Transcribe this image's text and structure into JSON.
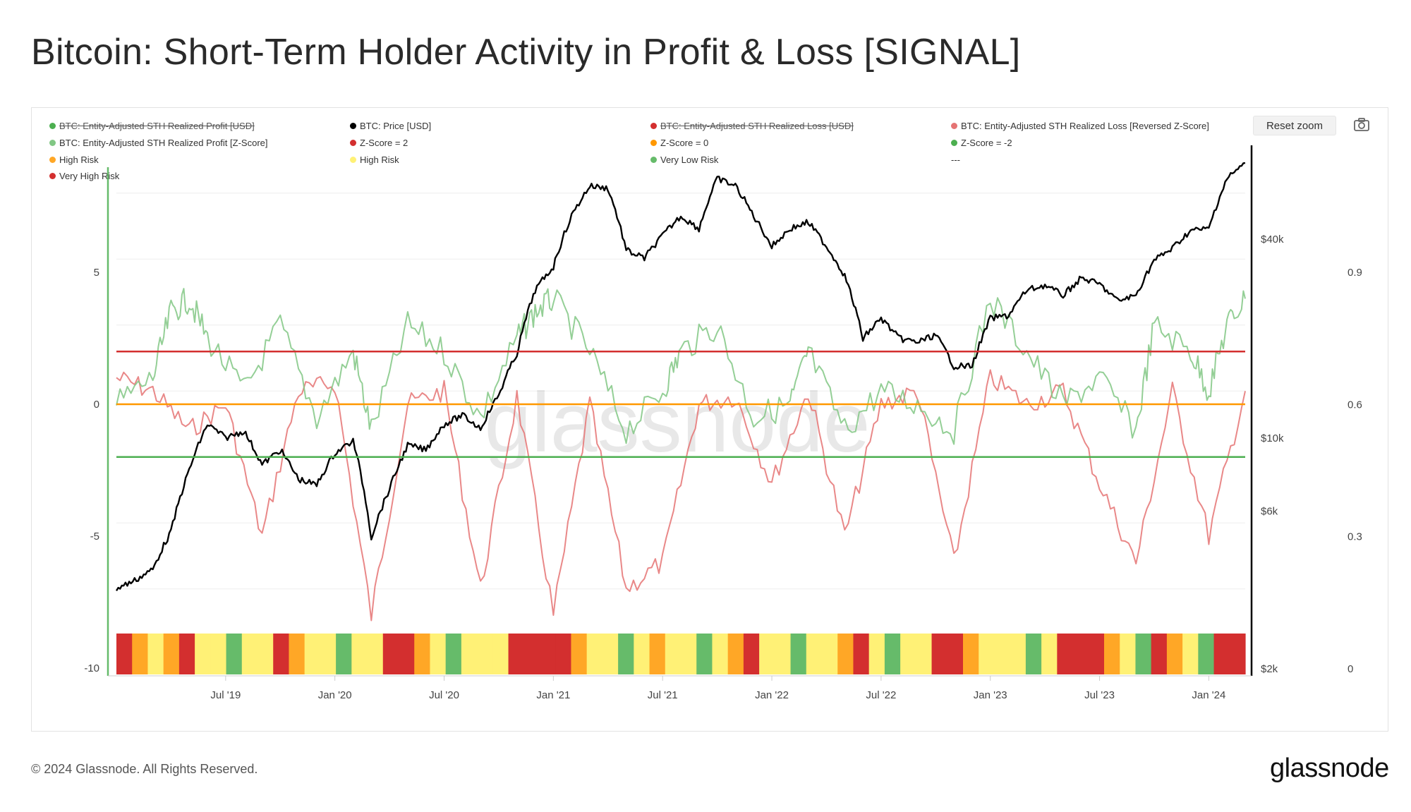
{
  "title": "Bitcoin: Short-Term Holder Activity in Profit & Loss [SIGNAL]",
  "reset_zoom_label": "Reset zoom",
  "camera_icon": "camera-icon",
  "watermark": "glassnode",
  "footer": {
    "copyright": "© 2024 Glassnode. All Rights Reserved.",
    "brand": "glassnode"
  },
  "legend": [
    {
      "label": "BTC: Entity-Adjusted STH Realized Profit [USD]",
      "color": "#4caf50",
      "disabled": true
    },
    {
      "label": "BTC: Price [USD]",
      "color": "#000000",
      "disabled": false
    },
    {
      "label": "BTC: Entity-Adjusted STH Realized Loss [USD]",
      "color": "#d32f2f",
      "disabled": true
    },
    {
      "label": "BTC: Entity-Adjusted STH Realized Loss [Reversed Z-Score]",
      "color": "#e57373",
      "disabled": false
    },
    {
      "label": "BTC: Entity-Adjusted STH Realized Profit [Z-Score]",
      "color": "#81c784",
      "disabled": false
    },
    {
      "label": "Z-Score = 2",
      "color": "#d32f2f",
      "disabled": false
    },
    {
      "label": "Z-Score = 0",
      "color": "#ff9800",
      "disabled": false
    },
    {
      "label": "Z-Score = -2",
      "color": "#4caf50",
      "disabled": false
    },
    {
      "label": "High Risk",
      "color": "#ffa726",
      "disabled": false
    },
    {
      "label": "High Risk",
      "color": "#fff176",
      "disabled": false
    },
    {
      "label": "Very Low Risk",
      "color": "#66bb6a",
      "disabled": false
    },
    {
      "label": "---",
      "color": "",
      "disabled": false
    },
    {
      "label": "Very High Risk",
      "color": "#d32f2f",
      "disabled": false
    }
  ],
  "chart_data": {
    "type": "line",
    "title": "Bitcoin: Short-Term Holder Activity in Profit & Loss [SIGNAL]",
    "x_range": [
      "2019-01",
      "2024-03"
    ],
    "x_ticks": [
      "Jul '19",
      "Jan '20",
      "Jul '20",
      "Jan '21",
      "Jul '21",
      "Jan '22",
      "Jul '22",
      "Jan '23",
      "Jul '23",
      "Jan '24"
    ],
    "y_left": {
      "ticks": [
        "5",
        "0",
        "-5",
        "-10"
      ],
      "values": [
        5,
        0,
        -5,
        -10
      ],
      "ylim": [
        -10,
        10
      ]
    },
    "y_price": {
      "scale": "log",
      "ticks": [
        "$40k",
        "$10k",
        "$6k",
        "$2k"
      ],
      "values": [
        40000,
        10000,
        6000,
        2000
      ],
      "ylim": [
        2000,
        80000
      ]
    },
    "y_right": {
      "ticks": [
        "0.9",
        "0.6",
        "0.3",
        "0"
      ],
      "values": [
        0.9,
        0.6,
        0.3,
        0
      ],
      "ylim": [
        0,
        1.2
      ]
    },
    "reference_lines": [
      {
        "name": "Z-Score = 2",
        "y": 2,
        "color": "#d32f2f"
      },
      {
        "name": "Z-Score = 0",
        "y": 0,
        "color": "#ff9800"
      },
      {
        "name": "Z-Score = -2",
        "y": -2,
        "color": "#4caf50"
      }
    ],
    "series": [
      {
        "name": "BTC: Price [USD]",
        "color": "#000000",
        "axis": "price",
        "points": [
          [
            "2019-01",
            3500
          ],
          [
            "2019-02",
            3700
          ],
          [
            "2019-03",
            4000
          ],
          [
            "2019-04",
            5200
          ],
          [
            "2019-05",
            8000
          ],
          [
            "2019-06",
            11000
          ],
          [
            "2019-07",
            10000
          ],
          [
            "2019-08",
            10500
          ],
          [
            "2019-09",
            8300
          ],
          [
            "2019-10",
            9200
          ],
          [
            "2019-11",
            7500
          ],
          [
            "2019-12",
            7200
          ],
          [
            "2020-01",
            9000
          ],
          [
            "2020-02",
            9800
          ],
          [
            "2020-03",
            5000
          ],
          [
            "2020-04",
            7000
          ],
          [
            "2020-05",
            9500
          ],
          [
            "2020-06",
            9200
          ],
          [
            "2020-07",
            11000
          ],
          [
            "2020-08",
            11700
          ],
          [
            "2020-09",
            10700
          ],
          [
            "2020-10",
            13500
          ],
          [
            "2020-11",
            18000
          ],
          [
            "2020-12",
            28000
          ],
          [
            "2021-01",
            33000
          ],
          [
            "2021-02",
            47000
          ],
          [
            "2021-03",
            58000
          ],
          [
            "2021-04",
            57000
          ],
          [
            "2021-05",
            37000
          ],
          [
            "2021-06",
            35000
          ],
          [
            "2021-07",
            41000
          ],
          [
            "2021-08",
            47000
          ],
          [
            "2021-09",
            43000
          ],
          [
            "2021-10",
            61000
          ],
          [
            "2021-11",
            58000
          ],
          [
            "2021-12",
            47000
          ],
          [
            "2022-01",
            38000
          ],
          [
            "2022-02",
            43000
          ],
          [
            "2022-03",
            45000
          ],
          [
            "2022-04",
            38000
          ],
          [
            "2022-05",
            31000
          ],
          [
            "2022-06",
            20000
          ],
          [
            "2022-07",
            23000
          ],
          [
            "2022-08",
            20000
          ],
          [
            "2022-09",
            19500
          ],
          [
            "2022-10",
            20500
          ],
          [
            "2022-11",
            16500
          ],
          [
            "2022-12",
            16500
          ],
          [
            "2023-01",
            23000
          ],
          [
            "2023-02",
            23500
          ],
          [
            "2023-03",
            28000
          ],
          [
            "2023-04",
            29000
          ],
          [
            "2023-05",
            27000
          ],
          [
            "2023-06",
            30500
          ],
          [
            "2023-07",
            29200
          ],
          [
            "2023-08",
            26000
          ],
          [
            "2023-09",
            27000
          ],
          [
            "2023-10",
            34500
          ],
          [
            "2023-11",
            37500
          ],
          [
            "2023-12",
            42500
          ],
          [
            "2024-01",
            43000
          ],
          [
            "2024-02",
            61000
          ],
          [
            "2024-03",
            68000
          ]
        ]
      },
      {
        "name": "BTC: Entity-Adjusted STH Realized Profit [Z-Score]",
        "color": "#81c784",
        "axis": "left",
        "points": [
          [
            "2019-01",
            0
          ],
          [
            "2019-03",
            1
          ],
          [
            "2019-04",
            3.5
          ],
          [
            "2019-05",
            4
          ],
          [
            "2019-06",
            2.5
          ],
          [
            "2019-08",
            0.5
          ],
          [
            "2019-10",
            3
          ],
          [
            "2019-12",
            -0.5
          ],
          [
            "2020-02",
            2
          ],
          [
            "2020-03",
            -1
          ],
          [
            "2020-05",
            3
          ],
          [
            "2020-07",
            2
          ],
          [
            "2020-09",
            -0.5
          ],
          [
            "2020-11",
            2.5
          ],
          [
            "2020-12",
            3.5
          ],
          [
            "2021-01",
            4
          ],
          [
            "2021-03",
            2
          ],
          [
            "2021-05",
            -1
          ],
          [
            "2021-07",
            0.5
          ],
          [
            "2021-08",
            2
          ],
          [
            "2021-10",
            3
          ],
          [
            "2021-12",
            -0.5
          ],
          [
            "2022-02",
            0
          ],
          [
            "2022-03",
            2
          ],
          [
            "2022-05",
            -1
          ],
          [
            "2022-07",
            0.5
          ],
          [
            "2022-09",
            0
          ],
          [
            "2022-11",
            -1
          ],
          [
            "2023-01",
            4
          ],
          [
            "2023-03",
            2
          ],
          [
            "2023-05",
            0
          ],
          [
            "2023-07",
            1
          ],
          [
            "2023-09",
            -1
          ],
          [
            "2023-10",
            3
          ],
          [
            "2023-12",
            2
          ],
          [
            "2024-01",
            0.5
          ],
          [
            "2024-02",
            3
          ],
          [
            "2024-03",
            4
          ]
        ]
      },
      {
        "name": "BTC: Entity-Adjusted STH Realized Loss [Reversed Z-Score]",
        "color": "#e57373",
        "axis": "left",
        "points": [
          [
            "2019-01",
            1
          ],
          [
            "2019-03",
            0.5
          ],
          [
            "2019-05",
            -1
          ],
          [
            "2019-07",
            0
          ],
          [
            "2019-09",
            -5
          ],
          [
            "2019-11",
            0.5
          ],
          [
            "2020-01",
            0.8
          ],
          [
            "2020-03",
            -8
          ],
          [
            "2020-05",
            0
          ],
          [
            "2020-07",
            0.5
          ],
          [
            "2020-09",
            -7
          ],
          [
            "2020-11",
            0.3
          ],
          [
            "2021-01",
            -8
          ],
          [
            "2021-03",
            0
          ],
          [
            "2021-05",
            -7
          ],
          [
            "2021-07",
            -6
          ],
          [
            "2021-09",
            0
          ],
          [
            "2021-11",
            0.3
          ],
          [
            "2022-01",
            -3
          ],
          [
            "2022-03",
            0.5
          ],
          [
            "2022-05",
            -5
          ],
          [
            "2022-07",
            0
          ],
          [
            "2022-09",
            0.5
          ],
          [
            "2022-11",
            -6
          ],
          [
            "2023-01",
            1
          ],
          [
            "2023-03",
            0
          ],
          [
            "2023-05",
            0.5
          ],
          [
            "2023-07",
            -3
          ],
          [
            "2023-09",
            -6
          ],
          [
            "2023-11",
            0.5
          ],
          [
            "2024-01",
            -5
          ],
          [
            "2024-03",
            0.5
          ]
        ]
      }
    ],
    "risk_band": {
      "labels": [
        "Very High Risk",
        "High Risk",
        "High Risk",
        "Very Low Risk"
      ],
      "colors": [
        "#d32f2f",
        "#ffa726",
        "#fff176",
        "#66bb6a"
      ],
      "sequence": [
        0,
        1,
        2,
        1,
        0,
        2,
        2,
        3,
        2,
        2,
        0,
        1,
        2,
        2,
        3,
        2,
        2,
        0,
        0,
        1,
        2,
        3,
        2,
        2,
        2,
        0,
        0,
        0,
        0,
        1,
        2,
        2,
        3,
        2,
        1,
        2,
        2,
        3,
        2,
        1,
        0,
        2,
        2,
        3,
        2,
        2,
        1,
        0,
        2,
        3,
        2,
        2,
        0,
        0,
        1,
        2,
        2,
        2,
        3,
        2,
        0,
        0,
        0,
        1,
        2,
        3,
        0,
        1,
        2,
        3,
        0,
        0
      ]
    }
  }
}
